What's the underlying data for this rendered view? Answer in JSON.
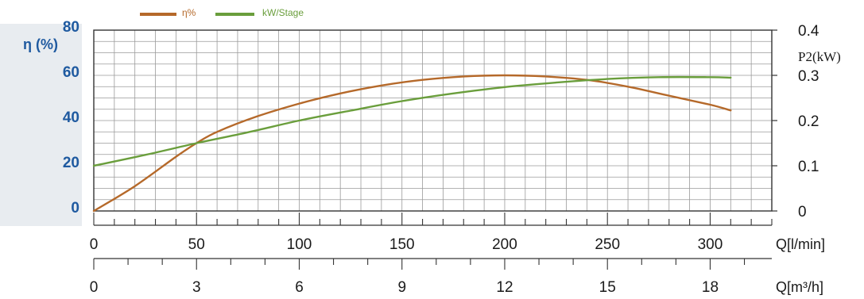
{
  "chart_data": {
    "type": "line",
    "legend": [
      {
        "name": "η%",
        "color": "#b5692a"
      },
      {
        "name": "kW/Stage",
        "color": "#6a9e3c"
      }
    ],
    "left_axis": {
      "label": "η (%)",
      "range": [
        0,
        80
      ],
      "ticks": [
        {
          "value": 0,
          "label": "0"
        },
        {
          "value": 20,
          "label": "20"
        },
        {
          "value": 40,
          "label": "40"
        },
        {
          "value": 60,
          "label": "60"
        },
        {
          "value": 80,
          "label": "80"
        }
      ]
    },
    "right_axis": {
      "label": "P2(kW)",
      "range": [
        0,
        0.4
      ],
      "ticks": [
        {
          "value": 0,
          "label": "0"
        },
        {
          "value": 0.1,
          "label": "0.1"
        },
        {
          "value": 0.2,
          "label": "0.2"
        },
        {
          "value": 0.3,
          "label": "0.3"
        },
        {
          "value": 0.4,
          "label": "0.4"
        }
      ]
    },
    "x_axis_lpm": {
      "label": "Q[l/min]",
      "range": [
        0,
        330
      ],
      "ticks": [
        {
          "value": 0,
          "label": "0"
        },
        {
          "value": 50,
          "label": "50"
        },
        {
          "value": 100,
          "label": "100"
        },
        {
          "value": 150,
          "label": "150"
        },
        {
          "value": 200,
          "label": "200"
        },
        {
          "value": 250,
          "label": "250"
        },
        {
          "value": 300,
          "label": "300"
        }
      ]
    },
    "x_axis_m3h": {
      "label": "Q[m³/h]",
      "range": [
        0,
        19.8
      ],
      "ticks": [
        {
          "value": 0,
          "label": "0"
        },
        {
          "value": 3,
          "label": "3"
        },
        {
          "value": 6,
          "label": "6"
        },
        {
          "value": 9,
          "label": "9"
        },
        {
          "value": 12,
          "label": "12"
        },
        {
          "value": 15,
          "label": "15"
        },
        {
          "value": 18,
          "label": "18"
        }
      ]
    },
    "series": [
      {
        "name": "η%",
        "axis": "left",
        "color": "#b5692a",
        "x": [
          0,
          20,
          40,
          50,
          60,
          80,
          100,
          120,
          140,
          160,
          180,
          200,
          220,
          240,
          260,
          280,
          300,
          310
        ],
        "y": [
          0,
          11,
          24,
          30,
          35,
          42,
          47.5,
          52,
          55.5,
          58,
          59.5,
          60,
          59.5,
          58,
          55,
          51,
          47,
          44.5
        ]
      },
      {
        "name": "kW/Stage",
        "axis": "right",
        "color": "#6a9e3c",
        "x": [
          0,
          25,
          50,
          75,
          100,
          125,
          150,
          175,
          200,
          225,
          250,
          275,
          300,
          310
        ],
        "y": [
          0.1,
          0.124,
          0.15,
          0.174,
          0.2,
          0.222,
          0.243,
          0.26,
          0.274,
          0.284,
          0.292,
          0.296,
          0.296,
          0.295
        ]
      }
    ],
    "grid": true
  }
}
